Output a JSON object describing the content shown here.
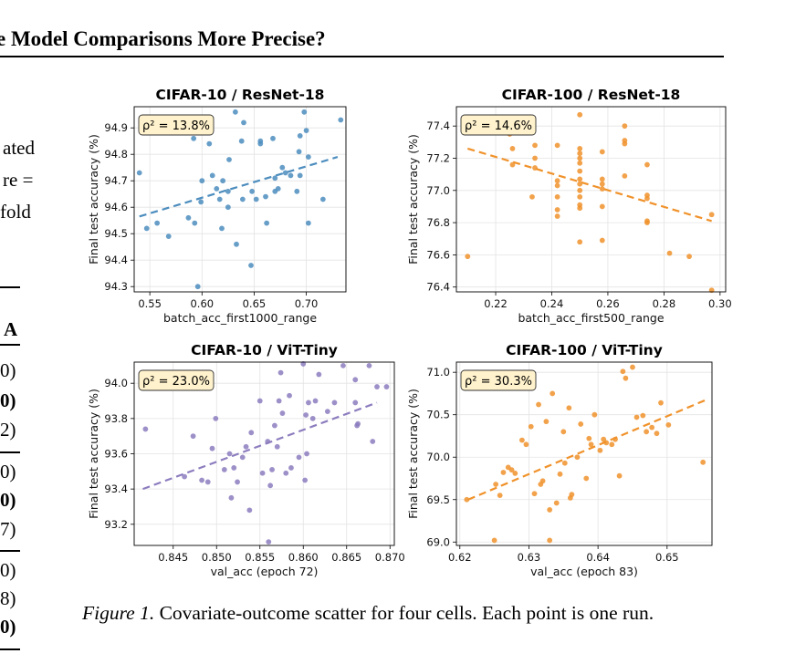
{
  "page": {
    "heading": "e Model Comparisons More Precise?",
    "body_fragments": [
      "ated",
      "re =",
      "fold"
    ],
    "table_fragments": [
      "A",
      "0)",
      "0)",
      "2)",
      "0)",
      "0)",
      "7)",
      "0)",
      "8)",
      "0)"
    ],
    "caption_label": "Figure 1.",
    "caption_text": "Covariate-outcome scatter for four cells. Each point is one run.",
    "partial_next_line": "…"
  },
  "colors": {
    "blue": "#4C8DBE",
    "orange": "#F0922B",
    "purple": "#8C7CBE",
    "label_bg": "#FFF2CC"
  },
  "chart_data": [
    {
      "type": "scatter",
      "title": "CIFAR-10 / ResNet-18",
      "xlabel": "batch_acc_first1000_range",
      "ylabel": "Final test accuracy (%)",
      "annotation": "ρ² = 13.8%",
      "xlim": [
        0.535,
        0.738
      ],
      "ylim": [
        94.28,
        94.98
      ],
      "xticks": [
        0.55,
        0.6,
        0.65,
        0.7
      ],
      "xtick_labels": [
        "0.55",
        "0.60",
        "0.65",
        "0.70"
      ],
      "yticks": [
        94.3,
        94.4,
        94.5,
        94.6,
        94.7,
        94.8,
        94.9
      ],
      "ytick_labels": [
        "94.3",
        "94.4",
        "94.5",
        "94.6",
        "94.7",
        "94.8",
        "94.9"
      ],
      "color": "#4C8DBE",
      "trend": [
        [
          0.54,
          94.565
        ],
        [
          0.73,
          94.79
        ]
      ],
      "points": [
        [
          0.54,
          94.73
        ],
        [
          0.547,
          94.52
        ],
        [
          0.557,
          94.54
        ],
        [
          0.568,
          94.49
        ],
        [
          0.587,
          94.56
        ],
        [
          0.592,
          94.86
        ],
        [
          0.593,
          94.54
        ],
        [
          0.599,
          94.62
        ],
        [
          0.6,
          94.7
        ],
        [
          0.607,
          94.84
        ],
        [
          0.61,
          94.72
        ],
        [
          0.614,
          94.67
        ],
        [
          0.617,
          94.63
        ],
        [
          0.62,
          94.7
        ],
        [
          0.619,
          94.52
        ],
        [
          0.625,
          94.6
        ],
        [
          0.626,
          94.78
        ],
        [
          0.633,
          94.46
        ],
        [
          0.632,
          94.96
        ],
        [
          0.639,
          94.63
        ],
        [
          0.64,
          94.92
        ],
        [
          0.638,
          94.85
        ],
        [
          0.647,
          94.38
        ],
        [
          0.648,
          94.66
        ],
        [
          0.656,
          94.84
        ],
        [
          0.656,
          94.85
        ],
        [
          0.652,
          94.63
        ],
        [
          0.661,
          94.64
        ],
        [
          0.662,
          94.54
        ],
        [
          0.668,
          94.86
        ],
        [
          0.67,
          94.66
        ],
        [
          0.67,
          94.71
        ],
        [
          0.673,
          94.67
        ],
        [
          0.68,
          94.73
        ],
        [
          0.677,
          94.75
        ],
        [
          0.685,
          94.72
        ],
        [
          0.694,
          94.87
        ],
        [
          0.693,
          94.81
        ],
        [
          0.694,
          94.72
        ],
        [
          0.691,
          94.66
        ],
        [
          0.698,
          94.96
        ],
        [
          0.7,
          94.89
        ],
        [
          0.702,
          94.79
        ],
        [
          0.702,
          94.54
        ],
        [
          0.716,
          94.63
        ],
        [
          0.733,
          94.93
        ],
        [
          0.596,
          94.3
        ],
        [
          0.625,
          94.66
        ]
      ]
    },
    {
      "type": "scatter",
      "title": "CIFAR-100 / ResNet-18",
      "xlabel": "batch_acc_first500_range",
      "ylabel": "Final test accuracy (%)",
      "annotation": "ρ² = 14.6%",
      "xlim": [
        0.206,
        0.302
      ],
      "ylim": [
        76.37,
        77.52
      ],
      "xticks": [
        0.22,
        0.24,
        0.26,
        0.28,
        0.3
      ],
      "xtick_labels": [
        "0.22",
        "0.24",
        "0.26",
        "0.28",
        "0.30"
      ],
      "yticks": [
        76.4,
        76.6,
        76.8,
        77.0,
        77.2,
        77.4
      ],
      "ytick_labels": [
        "76.4",
        "76.6",
        "76.8",
        "77.0",
        "77.2",
        "77.4"
      ],
      "color": "#F0922B",
      "trend": [
        [
          0.21,
          77.26
        ],
        [
          0.297,
          76.81
        ]
      ],
      "points": [
        [
          0.21,
          76.59
        ],
        [
          0.225,
          77.35
        ],
        [
          0.226,
          77.26
        ],
        [
          0.226,
          77.16
        ],
        [
          0.233,
          76.96
        ],
        [
          0.234,
          77.2
        ],
        [
          0.234,
          77.14
        ],
        [
          0.234,
          77.28
        ],
        [
          0.242,
          77.28
        ],
        [
          0.242,
          77.06
        ],
        [
          0.242,
          77.03
        ],
        [
          0.242,
          76.96
        ],
        [
          0.242,
          76.88
        ],
        [
          0.242,
          76.84
        ],
        [
          0.25,
          77.47
        ],
        [
          0.25,
          77.26
        ],
        [
          0.25,
          77.23
        ],
        [
          0.25,
          77.2
        ],
        [
          0.25,
          77.17
        ],
        [
          0.25,
          77.12
        ],
        [
          0.25,
          77.07
        ],
        [
          0.25,
          77.04
        ],
        [
          0.25,
          77.0
        ],
        [
          0.25,
          76.96
        ],
        [
          0.25,
          76.91
        ],
        [
          0.25,
          76.89
        ],
        [
          0.25,
          76.68
        ],
        [
          0.258,
          77.24
        ],
        [
          0.258,
          77.07
        ],
        [
          0.258,
          77.04
        ],
        [
          0.258,
          77.01
        ],
        [
          0.258,
          76.9
        ],
        [
          0.258,
          76.69
        ],
        [
          0.266,
          77.4
        ],
        [
          0.266,
          77.31
        ],
        [
          0.266,
          77.29
        ],
        [
          0.266,
          77.09
        ],
        [
          0.274,
          77.16
        ],
        [
          0.274,
          76.97
        ],
        [
          0.274,
          76.95
        ],
        [
          0.274,
          76.81
        ],
        [
          0.274,
          76.8
        ],
        [
          0.282,
          76.61
        ],
        [
          0.289,
          76.59
        ],
        [
          0.297,
          76.85
        ],
        [
          0.297,
          76.38
        ]
      ]
    },
    {
      "type": "scatter",
      "title": "CIFAR-10 / ViT-Tiny",
      "xlabel": "val_acc (epoch 72)",
      "ylabel": "Final test accuracy (%)",
      "annotation": "ρ² = 23.0%",
      "xlim": [
        0.8405,
        0.8705
      ],
      "ylim": [
        93.08,
        94.12
      ],
      "xticks": [
        0.845,
        0.85,
        0.855,
        0.86,
        0.865,
        0.87
      ],
      "xtick_labels": [
        "0.845",
        "0.850",
        "0.855",
        "0.860",
        "0.865",
        "0.870"
      ],
      "yticks": [
        93.2,
        93.4,
        93.6,
        93.8,
        94.0
      ],
      "ytick_labels": [
        "93.2",
        "93.4",
        "93.6",
        "93.8",
        "94.0"
      ],
      "color": "#8C7CBE",
      "trend": [
        [
          0.8415,
          93.4
        ],
        [
          0.8685,
          93.89
        ]
      ],
      "points": [
        [
          0.8418,
          93.74
        ],
        [
          0.8463,
          93.47
        ],
        [
          0.8473,
          93.7
        ],
        [
          0.8483,
          93.45
        ],
        [
          0.849,
          93.44
        ],
        [
          0.8495,
          93.63
        ],
        [
          0.8499,
          93.8
        ],
        [
          0.8509,
          93.51
        ],
        [
          0.8515,
          93.6
        ],
        [
          0.8517,
          93.35
        ],
        [
          0.852,
          93.52
        ],
        [
          0.8524,
          93.44
        ],
        [
          0.853,
          93.58
        ],
        [
          0.8534,
          93.64
        ],
        [
          0.8538,
          93.28
        ],
        [
          0.854,
          93.72
        ],
        [
          0.855,
          93.9
        ],
        [
          0.8553,
          93.49
        ],
        [
          0.856,
          93.1
        ],
        [
          0.8559,
          93.67
        ],
        [
          0.8562,
          93.42
        ],
        [
          0.8564,
          93.51
        ],
        [
          0.8567,
          93.76
        ],
        [
          0.857,
          93.64
        ],
        [
          0.8572,
          93.9
        ],
        [
          0.8574,
          94.06
        ],
        [
          0.8576,
          93.83
        ],
        [
          0.858,
          93.49
        ],
        [
          0.8584,
          93.93
        ],
        [
          0.8586,
          93.52
        ],
        [
          0.8595,
          93.58
        ],
        [
          0.86,
          94.11
        ],
        [
          0.8602,
          93.45
        ],
        [
          0.8603,
          93.82
        ],
        [
          0.8604,
          93.6
        ],
        [
          0.8606,
          93.89
        ],
        [
          0.8611,
          93.8
        ],
        [
          0.8614,
          93.9
        ],
        [
          0.8618,
          94.05
        ],
        [
          0.8628,
          93.84
        ],
        [
          0.8636,
          93.89
        ],
        [
          0.8646,
          94.1
        ],
        [
          0.866,
          94.02
        ],
        [
          0.8662,
          93.76
        ],
        [
          0.8663,
          93.77
        ],
        [
          0.8676,
          94.1
        ],
        [
          0.868,
          93.67
        ],
        [
          0.8685,
          93.98
        ],
        [
          0.8696,
          93.98
        ],
        [
          0.866,
          93.89
        ]
      ]
    },
    {
      "type": "scatter",
      "title": "CIFAR-100 / ViT-Tiny",
      "xlabel": "val_acc (epoch 83)",
      "ylabel": "Final test accuracy (%)",
      "annotation": "ρ² = 30.3%",
      "xlim": [
        0.6195,
        0.6565
      ],
      "ylim": [
        68.96,
        71.12
      ],
      "xticks": [
        0.62,
        0.63,
        0.64,
        0.65
      ],
      "xtick_labels": [
        "0.62",
        "0.63",
        "0.64",
        "0.65"
      ],
      "yticks": [
        69.0,
        69.5,
        70.0,
        70.5,
        71.0
      ],
      "ytick_labels": [
        "69.0",
        "69.5",
        "70.0",
        "70.5",
        "71.0"
      ],
      "color": "#F0922B",
      "trend": [
        [
          0.6212,
          69.5
        ],
        [
          0.6555,
          70.67
        ]
      ],
      "points": [
        [
          0.621,
          69.5
        ],
        [
          0.625,
          69.02
        ],
        [
          0.6252,
          69.68
        ],
        [
          0.6258,
          69.55
        ],
        [
          0.6263,
          69.82
        ],
        [
          0.627,
          69.88
        ],
        [
          0.6275,
          69.85
        ],
        [
          0.628,
          69.81
        ],
        [
          0.629,
          70.2
        ],
        [
          0.6296,
          70.15
        ],
        [
          0.6303,
          70.36
        ],
        [
          0.6308,
          69.57
        ],
        [
          0.6314,
          70.62
        ],
        [
          0.6317,
          69.68
        ],
        [
          0.632,
          69.72
        ],
        [
          0.6325,
          70.42
        ],
        [
          0.633,
          69.38
        ],
        [
          0.6334,
          70.75
        ],
        [
          0.633,
          69.02
        ],
        [
          0.634,
          69.46
        ],
        [
          0.6345,
          69.8
        ],
        [
          0.635,
          70.3
        ],
        [
          0.6352,
          69.93
        ],
        [
          0.6358,
          70.58
        ],
        [
          0.636,
          69.52
        ],
        [
          0.6362,
          69.56
        ],
        [
          0.637,
          70.0
        ],
        [
          0.6375,
          70.39
        ],
        [
          0.6383,
          69.75
        ],
        [
          0.6387,
          70.22
        ],
        [
          0.639,
          70.15
        ],
        [
          0.6395,
          70.5
        ],
        [
          0.6403,
          70.08
        ],
        [
          0.6408,
          70.21
        ],
        [
          0.6412,
          70.17
        ],
        [
          0.642,
          70.15
        ],
        [
          0.6425,
          70.21
        ],
        [
          0.6431,
          69.78
        ],
        [
          0.6436,
          71.01
        ],
        [
          0.644,
          70.93
        ],
        [
          0.645,
          71.06
        ],
        [
          0.6456,
          70.47
        ],
        [
          0.6465,
          70.49
        ],
        [
          0.647,
          70.3
        ],
        [
          0.6478,
          70.35
        ],
        [
          0.6485,
          70.28
        ],
        [
          0.6491,
          70.64
        ],
        [
          0.6502,
          70.38
        ],
        [
          0.6552,
          69.94
        ]
      ]
    }
  ]
}
